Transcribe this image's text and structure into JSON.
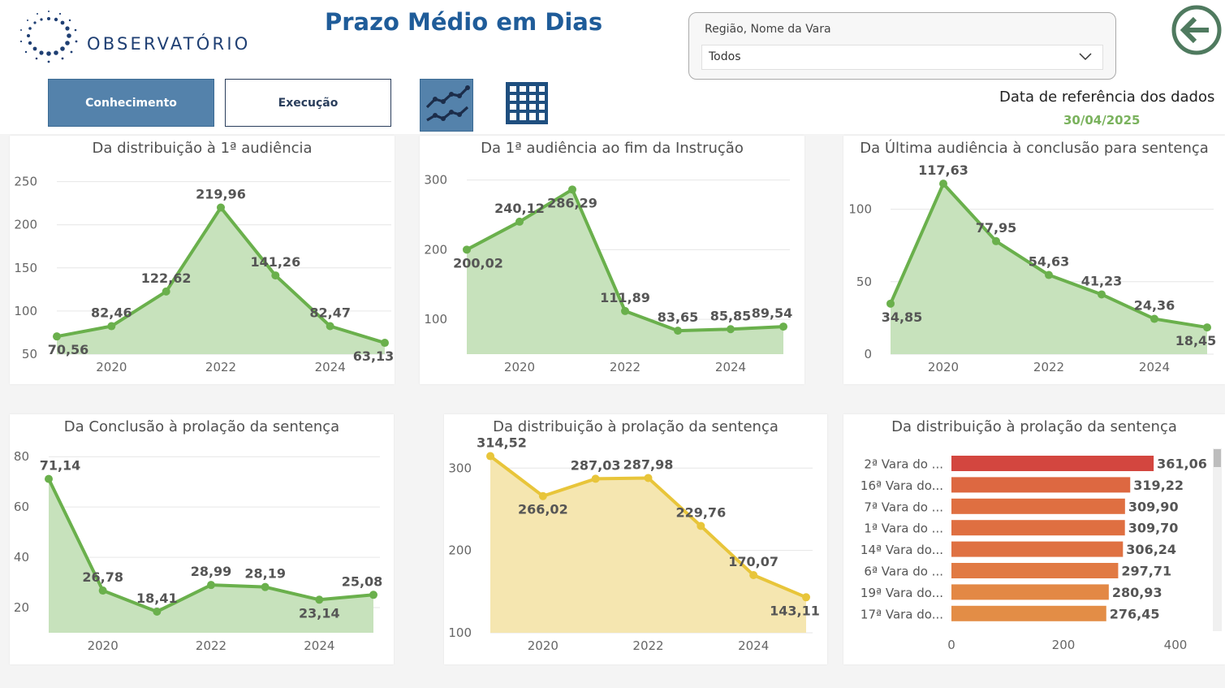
{
  "header": {
    "brand": "OBSERVATÓRIO",
    "title": "Prazo Médio em Dias",
    "tabs": [
      {
        "label": "Conhecimento",
        "active": true
      },
      {
        "label": "Execução",
        "active": false
      }
    ],
    "view_buttons": [
      "line-chart-icon",
      "table-grid-icon"
    ],
    "back_icon": "arrow-left-circle-icon",
    "accent_color": "#5482ab",
    "title_color": "#1f5c99"
  },
  "filter": {
    "label": "Região, Nome da Vara",
    "value": "Todos"
  },
  "reference": {
    "label": "Data de referência dos dados",
    "date": "30/04/2025"
  },
  "chart_data": [
    {
      "type": "area",
      "title": "Da distribuição à 1ª audiência",
      "x": [
        2019,
        2020,
        2021,
        2022,
        2023,
        2024,
        2025
      ],
      "values": [
        70.56,
        82.46,
        122.62,
        219.96,
        141.26,
        82.47,
        63.13
      ],
      "labels": [
        "70,56",
        "82,46",
        "122,62",
        "219,96",
        "141,26",
        "82,47",
        "63,13"
      ],
      "label_pos": [
        "below",
        "above",
        "above",
        "above",
        "above",
        "above",
        "below"
      ],
      "xticks": [
        2020,
        2022,
        2024
      ],
      "yticks": [
        50,
        100,
        150,
        200,
        250
      ],
      "ylim": [
        50,
        260
      ],
      "color": "#6ab04c",
      "fill": "#c7e2bc"
    },
    {
      "type": "area",
      "title": "Da 1ª audiência ao fim da Instrução",
      "x": [
        2019,
        2020,
        2021,
        2022,
        2023,
        2024,
        2025
      ],
      "values": [
        200.02,
        240.12,
        286.29,
        111.89,
        83.65,
        85.85,
        89.54
      ],
      "labels": [
        "200,02",
        "240,12",
        "286,29",
        "111,89",
        "83,65",
        "85,85",
        "89,54"
      ],
      "label_pos": [
        "below",
        "above",
        "below",
        "above",
        "above",
        "above",
        "above"
      ],
      "xticks": [
        2020,
        2022,
        2024
      ],
      "yticks": [
        100,
        200,
        300
      ],
      "ylim": [
        50,
        310
      ],
      "color": "#6ab04c",
      "fill": "#c7e2bc"
    },
    {
      "type": "area",
      "title": "Da Última audiência à conclusão para sentença",
      "x": [
        2019,
        2020,
        2021,
        2022,
        2023,
        2024,
        2025
      ],
      "values": [
        34.85,
        117.63,
        77.95,
        54.63,
        41.23,
        24.36,
        18.45
      ],
      "labels": [
        "34,85",
        "117,63",
        "77,95",
        "54,63",
        "41,23",
        "24,36",
        "18,45"
      ],
      "label_pos": [
        "below",
        "above",
        "above",
        "above",
        "above",
        "above",
        "below"
      ],
      "xticks": [
        2020,
        2022,
        2024
      ],
      "yticks": [
        0,
        50,
        100
      ],
      "ylim": [
        0,
        125
      ],
      "color": "#6ab04c",
      "fill": "#c7e2bc"
    },
    {
      "type": "area",
      "title": "Da Conclusão à prolação da sentença",
      "x": [
        2019,
        2020,
        2021,
        2022,
        2023,
        2024,
        2025
      ],
      "values": [
        71.14,
        26.78,
        18.41,
        28.99,
        28.19,
        23.14,
        25.08
      ],
      "labels": [
        "71,14",
        "26,78",
        "18,41",
        "28,99",
        "28,19",
        "23,14",
        "25,08"
      ],
      "label_pos": [
        "above",
        "above",
        "above",
        "above",
        "above",
        "below",
        "above"
      ],
      "xticks": [
        2020,
        2022,
        2024
      ],
      "yticks": [
        20,
        40,
        60,
        80
      ],
      "ylim": [
        10,
        82
      ],
      "color": "#6ab04c",
      "fill": "#c7e2bc"
    },
    {
      "type": "area",
      "title": "Da distribuição à prolação da sentença",
      "x": [
        2019,
        2020,
        2021,
        2022,
        2023,
        2024,
        2025
      ],
      "values": [
        314.52,
        266.02,
        287.03,
        287.98,
        229.76,
        170.07,
        143.11
      ],
      "labels": [
        "314,52",
        "266,02",
        "287,03",
        "287,98",
        "229,76",
        "170,07",
        "143,11"
      ],
      "label_pos": [
        "above",
        "below",
        "above",
        "above",
        "above",
        "above",
        "below"
      ],
      "xticks": [
        2020,
        2022,
        2024
      ],
      "yticks": [
        100,
        200,
        300
      ],
      "ylim": [
        100,
        320
      ],
      "color": "#e8c53a",
      "fill": "#f5e6b0"
    },
    {
      "type": "bar",
      "orientation": "horizontal",
      "title": "Da distribuição à prolação da sentença",
      "categories": [
        "2ª Vara do ...",
        "16ª Vara do...",
        "7ª Vara do ...",
        "1ª Vara do ...",
        "14ª Vara do...",
        "6ª Vara do ...",
        "19ª Vara do...",
        "17ª Vara do..."
      ],
      "values": [
        361.06,
        319.22,
        309.9,
        309.7,
        306.24,
        297.71,
        280.93,
        276.45
      ],
      "labels": [
        "361,06",
        "319,22",
        "309,90",
        "309,70",
        "306,24",
        "297,71",
        "280,93",
        "276,45"
      ],
      "colors": [
        "#d3463f",
        "#dd6841",
        "#df6f41",
        "#df6f41",
        "#df7142",
        "#e17a43",
        "#e38845",
        "#e38d46"
      ],
      "xticks": [
        0,
        200,
        400
      ],
      "xlim": [
        0,
        400
      ]
    }
  ]
}
